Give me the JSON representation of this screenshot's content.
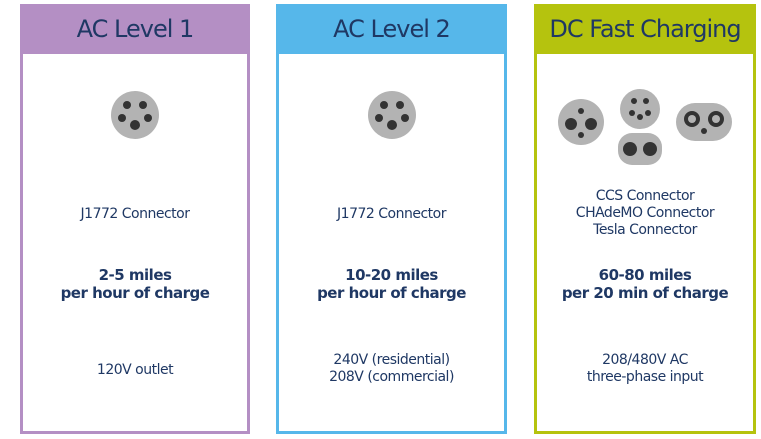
{
  "columns": [
    {
      "title": "AC Level 1",
      "connectors": [
        "J1772 Connector"
      ],
      "speed": [
        "2-5 miles",
        "per hour of charge"
      ],
      "power": [
        "120V outlet"
      ]
    },
    {
      "title": "AC Level 2",
      "connectors": [
        "J1772 Connector"
      ],
      "speed": [
        "10-20 miles",
        "per hour of charge"
      ],
      "power": [
        "240V (residential)",
        "208V (commercial)"
      ]
    },
    {
      "title": "DC Fast Charging",
      "connectors": [
        "CCS Connector",
        "CHAdeMO Connector",
        "Tesla Connector"
      ],
      "speed": [
        "60-80 miles",
        "per 20 min of charge"
      ],
      "power": [
        "208/480V AC",
        "three-phase input"
      ]
    }
  ]
}
